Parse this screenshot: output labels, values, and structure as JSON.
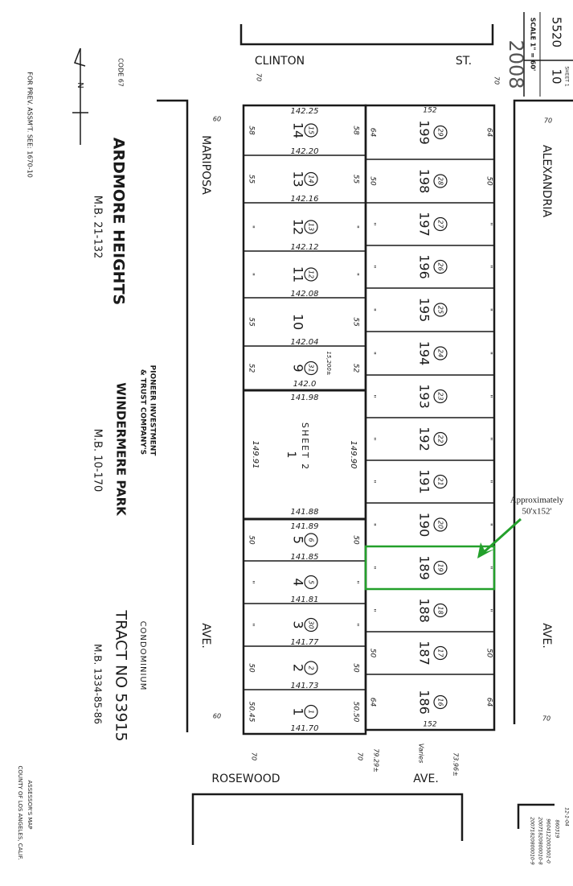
{
  "header": {
    "map_book": "5520",
    "page": "10",
    "sheet": "SHEET 1",
    "scale": "SCALE 1\" = 60'",
    "year": "2008"
  },
  "notes": {
    "prev_assessment": "FOR PREV. ASSM'T. SEE: 1670-10",
    "code": "CODE 67",
    "north": "N",
    "assessor_line1": "ASSESSOR'S MAP",
    "assessor_line2": "COUNTY OF LOS ANGELES, CALIF.",
    "revisions": [
      "12-1-04",
      "860319",
      "9604122003001-0",
      "20071820800010-8",
      "20071820800010-9"
    ]
  },
  "tracts": {
    "ardmore": {
      "name": "ARDMORE HEIGHTS",
      "mb": "M.B. 21-132"
    },
    "windermere": {
      "prefix": "PIONEER INVESTMENT",
      "prefix2": "& TRUST COMPANY'S",
      "name": "WINDERMERE PARK",
      "mb": "M.B. 10-170"
    },
    "condo": {
      "type": "CONDOMINIUM",
      "name": "TRACT NO 53915",
      "mb": "M.B. 1334-85-86"
    }
  },
  "streets": {
    "top": {
      "name": "CLINTON",
      "suffix": "ST.",
      "width_left": "70",
      "width_right": "70"
    },
    "left": {
      "name": "MARIPOSA",
      "suffix": "AVE.",
      "width_top": "60",
      "width_bottom": "60"
    },
    "right": {
      "name": "ALEXANDRIA",
      "suffix": "AVE.",
      "width_top": "70",
      "width_bottom": "70"
    },
    "bottom": {
      "name": "ROSEWOOD",
      "suffix": "AVE.",
      "width_left": "70",
      "width_mid": "70",
      "dim1": "79.29±",
      "dim2": "Varies",
      "dim3": "73.96±"
    }
  },
  "left_block": {
    "lots": [
      {
        "lot": "14",
        "parcel": "15",
        "front": "58"
      },
      {
        "lot": "13",
        "parcel": "14",
        "front": "55"
      },
      {
        "lot": "12",
        "parcel": "13",
        "front": "\""
      },
      {
        "lot": "11",
        "parcel": "12",
        "front": "\""
      },
      {
        "lot": "10",
        "parcel": "",
        "front": "55"
      },
      {
        "lot": "9",
        "parcel": "31",
        "front": "52",
        "area": "15,200±"
      },
      {
        "lot": "1",
        "parcel": "",
        "front": "",
        "sheet": "SHEET 2",
        "side_left": "149.91",
        "side_right": "149.90"
      },
      {
        "lot": "5",
        "parcel": "6",
        "front": "50"
      },
      {
        "lot": "4",
        "parcel": "5",
        "front": "\""
      },
      {
        "lot": "3",
        "parcel": "30",
        "front": "\""
      },
      {
        "lot": "2",
        "parcel": "2",
        "front": "50"
      },
      {
        "lot": "1",
        "parcel": "1",
        "front": "50.45",
        "front_right": "50.50"
      }
    ],
    "depths": [
      "142.25",
      "142.20",
      "142.16",
      "142.12",
      "142.08",
      "142.04",
      "142.0",
      "141.98",
      "141.88",
      "141.89",
      "141.85",
      "141.81",
      "141.77",
      "141.73",
      "141.70"
    ]
  },
  "right_block": {
    "top_width": "152",
    "bottom_width": "152",
    "lots": [
      {
        "lot": "199",
        "parcel": "29",
        "front": "64"
      },
      {
        "lot": "198",
        "parcel": "28",
        "front": "50"
      },
      {
        "lot": "197",
        "parcel": "27",
        "front": "\""
      },
      {
        "lot": "196",
        "parcel": "26",
        "front": "\""
      },
      {
        "lot": "195",
        "parcel": "25",
        "front": "\""
      },
      {
        "lot": "194",
        "parcel": "24",
        "front": "\""
      },
      {
        "lot": "193",
        "parcel": "23",
        "front": "\""
      },
      {
        "lot": "192",
        "parcel": "22",
        "front": "\""
      },
      {
        "lot": "191",
        "parcel": "21",
        "front": "\""
      },
      {
        "lot": "190",
        "parcel": "20",
        "front": "\""
      },
      {
        "lot": "189",
        "parcel": "19",
        "front": "\""
      },
      {
        "lot": "188",
        "parcel": "18",
        "front": "\""
      },
      {
        "lot": "187",
        "parcel": "17",
        "front": "50"
      },
      {
        "lot": "186",
        "parcel": "16",
        "front": "64"
      }
    ]
  },
  "annotation": {
    "line1": "Approximately",
    "line2": "50'x152'",
    "highlight_lot": "189",
    "color": "#23a02b"
  },
  "colors": {
    "ink": "#1a1a1a",
    "paper": "#ffffff"
  }
}
